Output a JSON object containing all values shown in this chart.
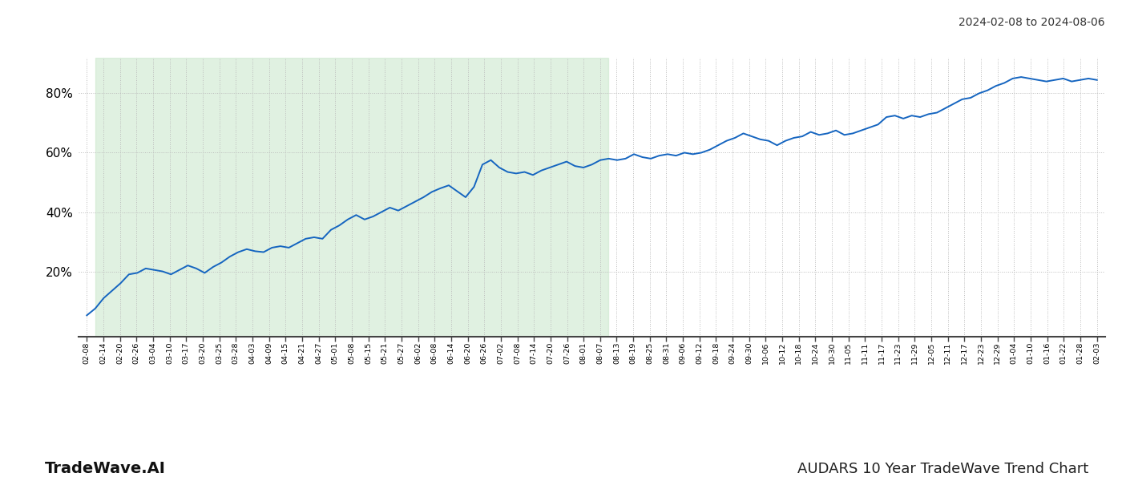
{
  "title_top_right": "2024-02-08 to 2024-08-06",
  "title_bottom_left": "TradeWave.AI",
  "title_bottom_right": "AUDARS 10 Year TradeWave Trend Chart",
  "background_color": "#ffffff",
  "line_color": "#1565c0",
  "line_width": 1.4,
  "shade_color": "#c8e6c9",
  "shade_alpha": 0.55,
  "ylim": [
    -2,
    92
  ],
  "yticks": [
    20,
    40,
    60,
    80
  ],
  "grid_color": "#bbbbbb",
  "x_labels": [
    "02-08",
    "02-14",
    "02-20",
    "02-26",
    "03-04",
    "03-10",
    "03-17",
    "03-20",
    "03-25",
    "03-28",
    "04-03",
    "04-09",
    "04-15",
    "04-21",
    "04-27",
    "05-01",
    "05-08",
    "05-15",
    "05-21",
    "05-27",
    "06-02",
    "06-08",
    "06-14",
    "06-20",
    "06-26",
    "07-02",
    "07-08",
    "07-14",
    "07-20",
    "07-26",
    "08-01",
    "08-07",
    "08-13",
    "08-19",
    "08-25",
    "08-31",
    "09-06",
    "09-12",
    "09-18",
    "09-24",
    "09-30",
    "10-06",
    "10-12",
    "10-18",
    "10-24",
    "10-30",
    "11-05",
    "11-11",
    "11-17",
    "11-23",
    "11-29",
    "12-05",
    "12-11",
    "12-17",
    "12-23",
    "12-29",
    "01-04",
    "01-10",
    "01-16",
    "01-22",
    "01-28",
    "02-03"
  ],
  "shade_start_label": "02-14",
  "shade_end_label": "08-07",
  "y_values": [
    5.2,
    7.5,
    11.0,
    13.5,
    16.0,
    19.0,
    19.5,
    21.0,
    20.5,
    20.0,
    19.0,
    20.5,
    22.0,
    21.0,
    19.5,
    21.5,
    23.0,
    25.0,
    26.5,
    27.5,
    26.8,
    26.5,
    28.0,
    28.5,
    28.0,
    29.5,
    31.0,
    31.5,
    31.0,
    34.0,
    35.5,
    37.5,
    39.0,
    37.5,
    38.5,
    40.0,
    41.5,
    40.5,
    42.0,
    43.5,
    45.0,
    46.8,
    48.0,
    49.0,
    47.0,
    45.0,
    48.5,
    56.0,
    57.5,
    55.0,
    53.5,
    53.0,
    53.5,
    52.5,
    54.0,
    55.0,
    56.0,
    57.0,
    55.5,
    55.0,
    56.0,
    57.5,
    58.0,
    57.5,
    58.0,
    59.5,
    58.5,
    58.0,
    59.0,
    59.5,
    59.0,
    60.0,
    59.5,
    60.0,
    61.0,
    62.5,
    64.0,
    65.0,
    66.5,
    65.5,
    64.5,
    64.0,
    62.5,
    64.0,
    65.0,
    65.5,
    67.0,
    66.0,
    66.5,
    67.5,
    66.0,
    66.5,
    67.5,
    68.5,
    69.5,
    72.0,
    72.5,
    71.5,
    72.5,
    72.0,
    73.0,
    73.5,
    75.0,
    76.5,
    78.0,
    78.5,
    80.0,
    81.0,
    82.5,
    83.5,
    85.0,
    85.5,
    85.0,
    84.5,
    84.0,
    84.5,
    85.0,
    84.0,
    84.5,
    85.0,
    84.5
  ]
}
